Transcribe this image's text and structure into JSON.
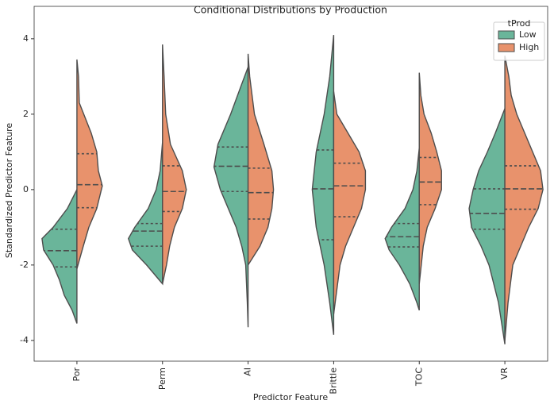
{
  "chart_data": {
    "type": "violin",
    "title": "Conditional Distributions by Production",
    "xlabel": "Predictor Feature",
    "ylabel": "Standardized Predictor Feature",
    "categories": [
      "Por",
      "Perm",
      "AI",
      "Brittle",
      "TOC",
      "VR"
    ],
    "ylim": [
      -4.55,
      4.86
    ],
    "yticks": [
      -4,
      -2,
      0,
      2,
      4
    ],
    "legend_title": "tProd",
    "legend_position": "upper right",
    "series": [
      {
        "name": "Low",
        "color": "#6ab59a",
        "side": "left",
        "violins": [
          {
            "y": [
              0,
              -0.5,
              -1.0,
              -1.3,
              -1.6,
              -2.0,
              -2.4,
              -2.8,
              -3.2,
              -3.55
            ],
            "density": [
              0,
              0.24,
              0.6,
              0.88,
              0.84,
              0.6,
              0.44,
              0.32,
              0.12,
              0
            ],
            "quartiles": [
              -2.05,
              -1.62,
              -1.05
            ]
          },
          {
            "y": [
              1.25,
              0.5,
              0,
              -0.5,
              -1.0,
              -1.3,
              -1.6,
              -2.0,
              -2.3,
              -2.5
            ],
            "density": [
              0,
              0.06,
              0.16,
              0.36,
              0.7,
              0.86,
              0.76,
              0.4,
              0.16,
              0
            ],
            "quartiles": [
              -1.5,
              -1.1,
              -0.9
            ]
          },
          {
            "y": [
              3.25,
              2.8,
              2.0,
              1.2,
              0.6,
              0,
              -0.5,
              -1.0,
              -1.5,
              -2.0,
              -3.0,
              -3.65
            ],
            "density": [
              0,
              0.16,
              0.44,
              0.76,
              0.86,
              0.7,
              0.5,
              0.3,
              0.16,
              0.06,
              0.02,
              0
            ],
            "quartiles": [
              -0.05,
              0.62,
              1.13
            ]
          },
          {
            "y": [
              4.1,
              3.0,
              2.0,
              1.0,
              0,
              -1.0,
              -2.0,
              -3.0,
              -3.85
            ],
            "density": [
              0,
              0.1,
              0.24,
              0.44,
              0.54,
              0.44,
              0.24,
              0.1,
              0
            ],
            "quartiles": [
              -1.33,
              0.02,
              1.05
            ]
          },
          {
            "y": [
              1.1,
              0.5,
              0,
              -0.5,
              -1.0,
              -1.3,
              -1.6,
              -2.0,
              -2.5,
              -3.0,
              -3.2
            ],
            "density": [
              0,
              0.06,
              0.16,
              0.36,
              0.7,
              0.86,
              0.76,
              0.5,
              0.24,
              0.06,
              0
            ],
            "quartiles": [
              -1.52,
              -1.25,
              -0.9
            ]
          },
          {
            "y": [
              2.15,
              1.5,
              1.0,
              0.5,
              0,
              -0.5,
              -1.0,
              -1.5,
              -2.0,
              -3.0,
              -4.1
            ],
            "density": [
              0,
              0.24,
              0.44,
              0.66,
              0.8,
              0.9,
              0.84,
              0.6,
              0.4,
              0.16,
              0
            ],
            "quartiles": [
              -1.05,
              -0.63,
              0.02
            ]
          }
        ]
      },
      {
        "name": "High",
        "color": "#e8926c",
        "side": "right",
        "violins": [
          {
            "y": [
              3.45,
              3.0,
              2.3,
              1.5,
              1.0,
              0.5,
              0.1,
              -0.5,
              -1.0,
              -1.5,
              -2.1
            ],
            "density": [
              0,
              0.04,
              0.06,
              0.36,
              0.5,
              0.54,
              0.64,
              0.5,
              0.3,
              0.16,
              0
            ],
            "quartiles": [
              -0.48,
              0.13,
              0.95
            ]
          },
          {
            "y": [
              3.85,
              3.0,
              2.0,
              1.2,
              0.5,
              0,
              -0.5,
              -1.0,
              -1.5,
              -2.0,
              -2.5
            ],
            "density": [
              0,
              0.04,
              0.08,
              0.2,
              0.5,
              0.6,
              0.5,
              0.3,
              0.18,
              0.1,
              0
            ],
            "quartiles": [
              -0.58,
              -0.05,
              0.63
            ]
          },
          {
            "y": [
              3.6,
              3.0,
              2.0,
              1.2,
              0.5,
              0,
              -0.5,
              -1.0,
              -1.5,
              -2.0
            ],
            "density": [
              0,
              0.04,
              0.16,
              0.4,
              0.6,
              0.64,
              0.6,
              0.5,
              0.3,
              0
            ],
            "quartiles": [
              -0.78,
              -0.08,
              0.57
            ]
          },
          {
            "y": [
              2.6,
              2.0,
              1.5,
              1.0,
              0.5,
              0,
              -0.5,
              -1.0,
              -1.5,
              -2.0,
              -3.3
            ],
            "density": [
              0,
              0.08,
              0.36,
              0.64,
              0.8,
              0.8,
              0.7,
              0.5,
              0.3,
              0.16,
              0
            ],
            "quartiles": [
              -0.72,
              0.1,
              0.7
            ]
          },
          {
            "y": [
              3.1,
              2.5,
              2.0,
              1.5,
              1.0,
              0.5,
              0,
              -0.5,
              -1.0,
              -1.5,
              -2.5
            ],
            "density": [
              0,
              0.04,
              0.12,
              0.3,
              0.44,
              0.56,
              0.56,
              0.4,
              0.2,
              0.1,
              0
            ],
            "quartiles": [
              -0.4,
              0.2,
              0.85
            ]
          },
          {
            "y": [
              3.55,
              3.0,
              2.5,
              2.0,
              1.5,
              1.0,
              0.5,
              0,
              -0.5,
              -1.0,
              -1.5,
              -2.0,
              -3.0,
              -4.0
            ],
            "density": [
              0,
              0.1,
              0.16,
              0.3,
              0.5,
              0.7,
              0.9,
              0.96,
              0.84,
              0.6,
              0.4,
              0.2,
              0.08,
              0
            ],
            "quartiles": [
              -0.52,
              0.02,
              0.63
            ]
          }
        ]
      }
    ]
  }
}
